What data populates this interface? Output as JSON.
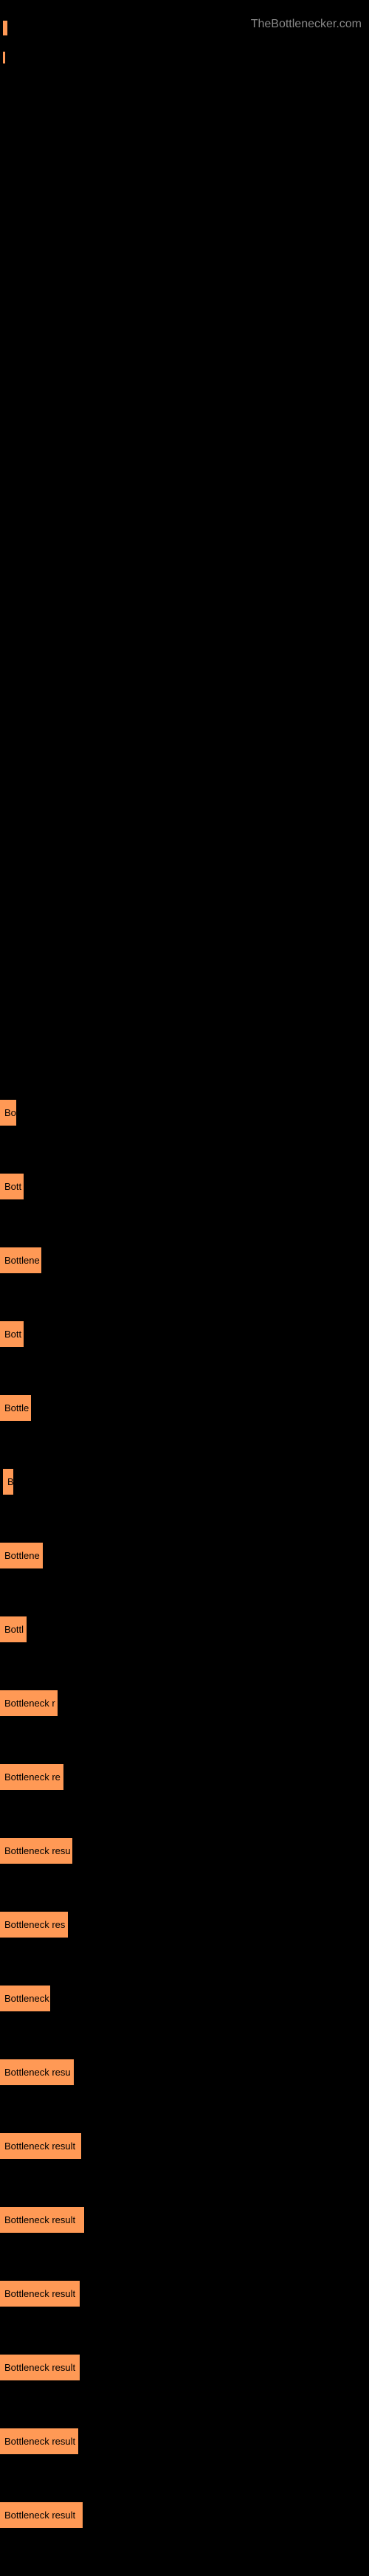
{
  "watermark": "TheBottlenecker.com",
  "results": [
    {
      "label": "Bo",
      "width": 22
    },
    {
      "label": "Bott",
      "width": 32
    },
    {
      "label": "Bottlene",
      "width": 56
    },
    {
      "label": "Bott",
      "width": 32
    },
    {
      "label": "Bottle",
      "width": 42
    },
    {
      "label": "B",
      "width": 14,
      "indent": true
    },
    {
      "label": "Bottlene",
      "width": 58
    },
    {
      "label": "Bottl",
      "width": 36
    },
    {
      "label": "Bottleneck r",
      "width": 78
    },
    {
      "label": "Bottleneck re",
      "width": 86
    },
    {
      "label": "Bottleneck resu",
      "width": 98
    },
    {
      "label": "Bottleneck res",
      "width": 92
    },
    {
      "label": "Bottleneck",
      "width": 68
    },
    {
      "label": "Bottleneck resu",
      "width": 100
    },
    {
      "label": "Bottleneck result",
      "width": 110
    },
    {
      "label": "Bottleneck result",
      "width": 114
    },
    {
      "label": "Bottleneck result",
      "width": 108
    },
    {
      "label": "Bottleneck result",
      "width": 108
    },
    {
      "label": "Bottleneck result",
      "width": 106
    },
    {
      "label": "Bottleneck result",
      "width": 112
    }
  ],
  "colors": {
    "background": "#000000",
    "bar": "#ff9955",
    "bar_text": "#000000",
    "watermark": "#888888"
  }
}
